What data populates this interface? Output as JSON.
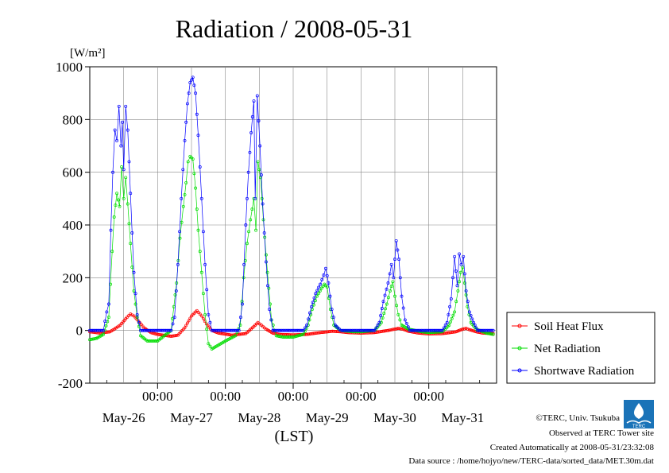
{
  "chart_data": {
    "type": "line",
    "title": "Radiation / 2008-05-31",
    "ylabel_unit": "[W/m²]",
    "xlabel": "(LST)",
    "ylim": [
      -200,
      1000
    ],
    "yticks": [
      "1000",
      "800",
      "600",
      "400",
      "200",
      "0",
      "-200"
    ],
    "xlim": [
      0,
      6
    ],
    "x_unit": "days since 2008-05-25 12:00 LST",
    "midnight_labels": [
      "00:00",
      "00:00",
      "00:00",
      "00:00",
      "00:00"
    ],
    "day_labels": [
      "May-26",
      "May-27",
      "May-28",
      "May-29",
      "May-30",
      "May-31"
    ],
    "grid": true,
    "legend_position": "right",
    "series": [
      {
        "name": "Soil Heat Flux",
        "color": "#ff0000",
        "points": [
          [
            0,
            -5
          ],
          [
            0.15,
            -10
          ],
          [
            0.3,
            -5
          ],
          [
            0.45,
            20
          ],
          [
            0.55,
            50
          ],
          [
            0.6,
            62
          ],
          [
            0.65,
            55
          ],
          [
            0.72,
            35
          ],
          [
            0.8,
            10
          ],
          [
            0.9,
            -8
          ],
          [
            1.0,
            -15
          ],
          [
            1.2,
            -22
          ],
          [
            1.3,
            -18
          ],
          [
            1.4,
            10
          ],
          [
            1.5,
            55
          ],
          [
            1.58,
            75
          ],
          [
            1.65,
            55
          ],
          [
            1.72,
            25
          ],
          [
            1.8,
            0
          ],
          [
            1.9,
            -10
          ],
          [
            2.1,
            -18
          ],
          [
            2.3,
            -12
          ],
          [
            2.42,
            15
          ],
          [
            2.48,
            30
          ],
          [
            2.53,
            20
          ],
          [
            2.6,
            5
          ],
          [
            2.7,
            -10
          ],
          [
            2.8,
            -15
          ],
          [
            3.0,
            -17
          ],
          [
            3.2,
            -15
          ],
          [
            3.4,
            -8
          ],
          [
            3.58,
            -3
          ],
          [
            3.7,
            -5
          ],
          [
            3.8,
            -8
          ],
          [
            4.0,
            -10
          ],
          [
            4.2,
            -8
          ],
          [
            4.4,
            0
          ],
          [
            4.55,
            8
          ],
          [
            4.62,
            5
          ],
          [
            4.7,
            -3
          ],
          [
            4.85,
            -10
          ],
          [
            5.0,
            -13
          ],
          [
            5.2,
            -12
          ],
          [
            5.4,
            -5
          ],
          [
            5.5,
            5
          ],
          [
            5.55,
            8
          ],
          [
            5.6,
            3
          ],
          [
            5.7,
            -5
          ],
          [
            5.8,
            -10
          ],
          [
            5.95,
            -12
          ]
        ]
      },
      {
        "name": "Net Radiation",
        "color": "#00dd00",
        "points": [
          [
            0,
            -35
          ],
          [
            0.1,
            -30
          ],
          [
            0.2,
            -15
          ],
          [
            0.28,
            50
          ],
          [
            0.33,
            300
          ],
          [
            0.36,
            430
          ],
          [
            0.4,
            520
          ],
          [
            0.44,
            470
          ],
          [
            0.47,
            620
          ],
          [
            0.5,
            500
          ],
          [
            0.53,
            580
          ],
          [
            0.56,
            480
          ],
          [
            0.6,
            330
          ],
          [
            0.65,
            150
          ],
          [
            0.7,
            50
          ],
          [
            0.75,
            -20
          ],
          [
            0.85,
            -40
          ],
          [
            1.0,
            -40
          ],
          [
            1.1,
            -20
          ],
          [
            1.2,
            0
          ],
          [
            1.28,
            180
          ],
          [
            1.33,
            350
          ],
          [
            1.38,
            470
          ],
          [
            1.42,
            560
          ],
          [
            1.45,
            640
          ],
          [
            1.48,
            660
          ],
          [
            1.52,
            650
          ],
          [
            1.56,
            540
          ],
          [
            1.6,
            380
          ],
          [
            1.65,
            220
          ],
          [
            1.7,
            60
          ],
          [
            1.75,
            -50
          ],
          [
            1.8,
            -70
          ],
          [
            1.9,
            -55
          ],
          [
            2.0,
            -40
          ],
          [
            2.15,
            -20
          ],
          [
            2.22,
            20
          ],
          [
            2.27,
            200
          ],
          [
            2.32,
            330
          ],
          [
            2.37,
            420
          ],
          [
            2.42,
            500
          ],
          [
            2.45,
            380
          ],
          [
            2.48,
            640
          ],
          [
            2.52,
            580
          ],
          [
            2.56,
            420
          ],
          [
            2.62,
            220
          ],
          [
            2.68,
            40
          ],
          [
            2.75,
            -20
          ],
          [
            2.85,
            -25
          ],
          [
            3.0,
            -25
          ],
          [
            3.15,
            -15
          ],
          [
            3.22,
            20
          ],
          [
            3.28,
            80
          ],
          [
            3.35,
            130
          ],
          [
            3.42,
            160
          ],
          [
            3.46,
            175
          ],
          [
            3.5,
            165
          ],
          [
            3.55,
            80
          ],
          [
            3.6,
            20
          ],
          [
            3.7,
            0
          ],
          [
            3.9,
            -5
          ],
          [
            4.0,
            -5
          ],
          [
            4.2,
            0
          ],
          [
            4.3,
            30
          ],
          [
            4.38,
            100
          ],
          [
            4.43,
            150
          ],
          [
            4.47,
            185
          ],
          [
            4.5,
            130
          ],
          [
            4.55,
            60
          ],
          [
            4.6,
            20
          ],
          [
            4.7,
            5
          ],
          [
            4.9,
            -5
          ],
          [
            5.0,
            -8
          ],
          [
            5.2,
            -5
          ],
          [
            5.3,
            20
          ],
          [
            5.38,
            70
          ],
          [
            5.43,
            150
          ],
          [
            5.47,
            220
          ],
          [
            5.5,
            240
          ],
          [
            5.53,
            180
          ],
          [
            5.57,
            90
          ],
          [
            5.62,
            30
          ],
          [
            5.7,
            5
          ],
          [
            5.85,
            -10
          ],
          [
            5.95,
            -15
          ]
        ]
      },
      {
        "name": "Shortwave Radiation",
        "color": "#0000ff",
        "points": [
          [
            0,
            0
          ],
          [
            0.2,
            0
          ],
          [
            0.25,
            70
          ],
          [
            0.28,
            100
          ],
          [
            0.31,
            380
          ],
          [
            0.34,
            600
          ],
          [
            0.37,
            760
          ],
          [
            0.4,
            720
          ],
          [
            0.43,
            850
          ],
          [
            0.46,
            700
          ],
          [
            0.48,
            790
          ],
          [
            0.5,
            610
          ],
          [
            0.53,
            850
          ],
          [
            0.56,
            760
          ],
          [
            0.6,
            520
          ],
          [
            0.65,
            220
          ],
          [
            0.7,
            60
          ],
          [
            0.75,
            0
          ],
          [
            1.0,
            0
          ],
          [
            1.2,
            0
          ],
          [
            1.25,
            50
          ],
          [
            1.3,
            250
          ],
          [
            1.35,
            500
          ],
          [
            1.4,
            720
          ],
          [
            1.44,
            860
          ],
          [
            1.48,
            940
          ],
          [
            1.52,
            960
          ],
          [
            1.56,
            900
          ],
          [
            1.6,
            740
          ],
          [
            1.65,
            500
          ],
          [
            1.7,
            250
          ],
          [
            1.75,
            60
          ],
          [
            1.8,
            0
          ],
          [
            2.0,
            0
          ],
          [
            2.2,
            0
          ],
          [
            2.25,
            100
          ],
          [
            2.3,
            400
          ],
          [
            2.34,
            600
          ],
          [
            2.38,
            750
          ],
          [
            2.42,
            870
          ],
          [
            2.44,
            500
          ],
          [
            2.47,
            890
          ],
          [
            2.51,
            700
          ],
          [
            2.55,
            480
          ],
          [
            2.6,
            260
          ],
          [
            2.65,
            80
          ],
          [
            2.7,
            0
          ],
          [
            3.0,
            0
          ],
          [
            3.15,
            0
          ],
          [
            3.2,
            20
          ],
          [
            3.27,
            90
          ],
          [
            3.33,
            140
          ],
          [
            3.4,
            175
          ],
          [
            3.45,
            210
          ],
          [
            3.48,
            235
          ],
          [
            3.52,
            180
          ],
          [
            3.57,
            80
          ],
          [
            3.62,
            20
          ],
          [
            3.7,
            0
          ],
          [
            4.0,
            0
          ],
          [
            4.2,
            0
          ],
          [
            4.27,
            30
          ],
          [
            4.33,
            110
          ],
          [
            4.4,
            180
          ],
          [
            4.45,
            250
          ],
          [
            4.48,
            200
          ],
          [
            4.52,
            340
          ],
          [
            4.56,
            270
          ],
          [
            4.6,
            130
          ],
          [
            4.65,
            40
          ],
          [
            4.72,
            0
          ],
          [
            5.0,
            0
          ],
          [
            5.2,
            0
          ],
          [
            5.27,
            30
          ],
          [
            5.33,
            120
          ],
          [
            5.38,
            280
          ],
          [
            5.42,
            170
          ],
          [
            5.45,
            290
          ],
          [
            5.48,
            250
          ],
          [
            5.51,
            280
          ],
          [
            5.55,
            150
          ],
          [
            5.6,
            70
          ],
          [
            5.66,
            30
          ],
          [
            5.72,
            0
          ],
          [
            5.95,
            0
          ]
        ]
      }
    ]
  },
  "credits": {
    "copyright": "©TERC, Univ. Tsukuba",
    "observed": "Observed at TERC Tower site",
    "created": "Created Automatically at 2008-05-31/23:32:08",
    "source": "Data source : /home/hojyo/new/TERC-data/sorted_data/MET.30m.dat",
    "logo_text": "TERC"
  }
}
